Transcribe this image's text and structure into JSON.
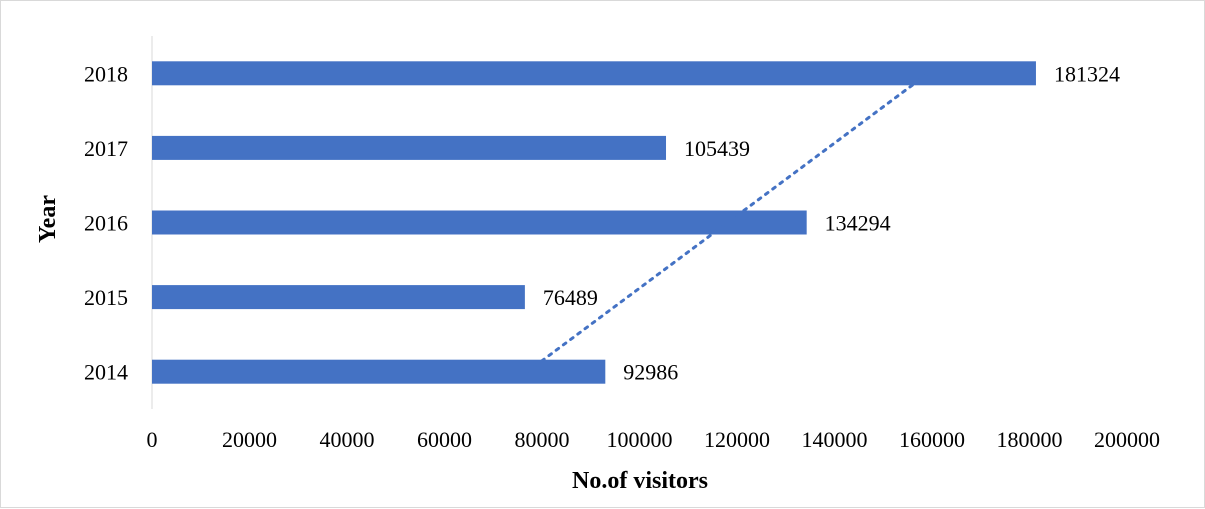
{
  "chart_data": {
    "type": "bar",
    "orientation": "horizontal",
    "categories": [
      "2014",
      "2015",
      "2016",
      "2017",
      "2018"
    ],
    "values": [
      92986,
      76489,
      134294,
      105439,
      181324
    ],
    "data_labels": [
      "92986",
      "76489",
      "134294",
      "105439",
      "181324"
    ],
    "xlabel": "No.of visitors",
    "ylabel": "Year",
    "xlim": [
      0,
      200000
    ],
    "x_ticks": [
      "0",
      "20000",
      "40000",
      "60000",
      "80000",
      "100000",
      "120000",
      "140000",
      "160000",
      "180000",
      "200000"
    ],
    "trendline": {
      "style": "dotted",
      "type": "linear"
    },
    "grid": false,
    "legend": "none",
    "bar_color": "#4472C4"
  }
}
